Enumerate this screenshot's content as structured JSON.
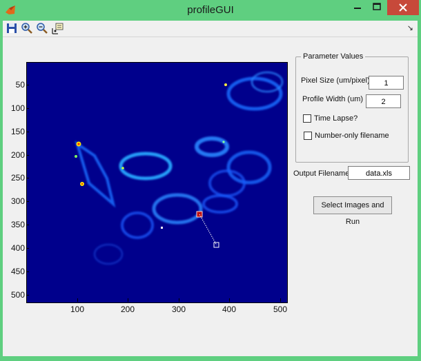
{
  "window": {
    "title": "profileGUI"
  },
  "toolbar": {
    "items": [
      {
        "name": "save-icon"
      },
      {
        "name": "zoom-in-icon"
      },
      {
        "name": "zoom-out-icon"
      },
      {
        "name": "data-cursor-icon"
      }
    ],
    "dock_arrow": "↘"
  },
  "plot": {
    "colormap": "jet",
    "y_ticks": [
      "50",
      "100",
      "150",
      "200",
      "250",
      "300",
      "350",
      "400",
      "450",
      "500"
    ],
    "x_ticks": [
      "100",
      "200",
      "300",
      "400",
      "500"
    ],
    "x_range": [
      1,
      512
    ],
    "y_range": [
      1,
      512
    ]
  },
  "parameters": {
    "panel_title": "Parameter Values",
    "pixel_size_label": "Pixel Size (um/pixel)",
    "pixel_size_value": "1",
    "profile_width_label": "Profile Width (um)",
    "profile_width_value": "2",
    "time_lapse_label": "Time Lapse?",
    "time_lapse_checked": false,
    "number_only_label": "Number-only filename",
    "number_only_checked": false
  },
  "output": {
    "label": "Output Filename",
    "value": "data.xls"
  },
  "actions": {
    "run_label": "Select Images and Run"
  }
}
